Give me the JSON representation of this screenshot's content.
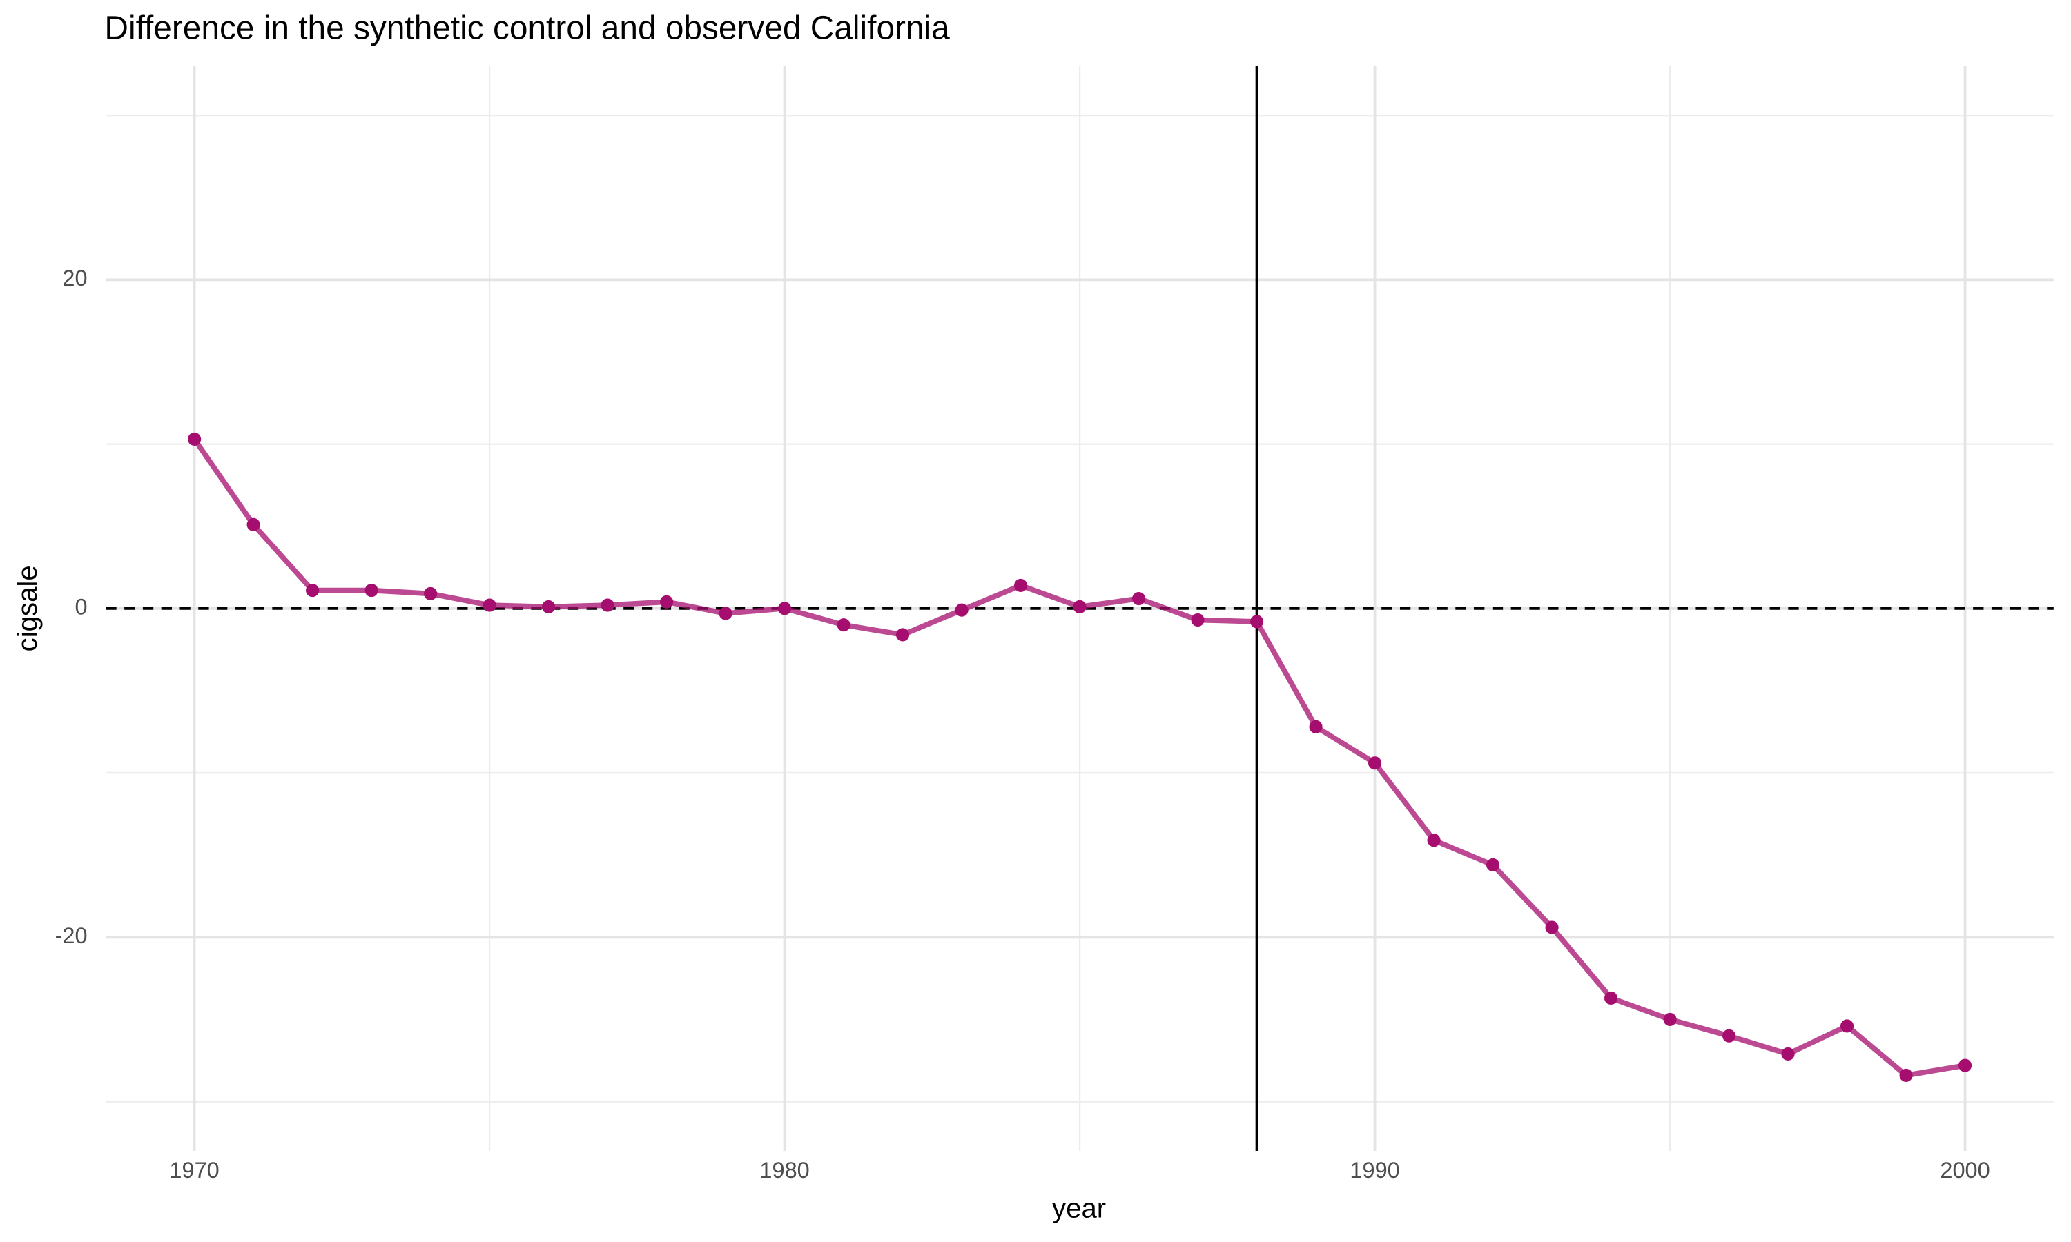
{
  "chart_data": {
    "type": "line",
    "title": "Difference in the synthetic control and observed California",
    "x_label": "year",
    "y_label": "cigsale",
    "x": [
      1970,
      1971,
      1972,
      1973,
      1974,
      1975,
      1976,
      1977,
      1978,
      1979,
      1980,
      1981,
      1982,
      1983,
      1984,
      1985,
      1986,
      1987,
      1988,
      1989,
      1990,
      1991,
      1992,
      1993,
      1994,
      1995,
      1996,
      1997,
      1998,
      1999,
      2000
    ],
    "series": [
      {
        "color": "#a50d6e",
        "values": [
          10.3,
          5.1,
          1.1,
          1.1,
          0.9,
          0.2,
          0.1,
          0.2,
          0.4,
          -0.3,
          0,
          -1.0,
          -1.6,
          -0.1,
          1.4,
          0.1,
          0.6,
          -0.7,
          -0.8,
          -7.2,
          -9.4,
          -14.1,
          -15.6,
          -19.4,
          -23.7,
          -25.0,
          -26.0,
          -27.1,
          -25.4,
          -28.4,
          -27.8
        ]
      }
    ],
    "xlim": [
      1968.5,
      2001.5
    ],
    "ylim": [
      -33,
      33
    ],
    "xticks": [
      1970,
      1980,
      1990,
      2000
    ],
    "yticks": [
      -20,
      0,
      20
    ],
    "x_minor_grid": [
      1975,
      1985,
      1995
    ],
    "y_minor_grid": [
      -30,
      -10,
      10,
      30
    ],
    "grid": true,
    "vline": 1988,
    "hline": 0
  }
}
